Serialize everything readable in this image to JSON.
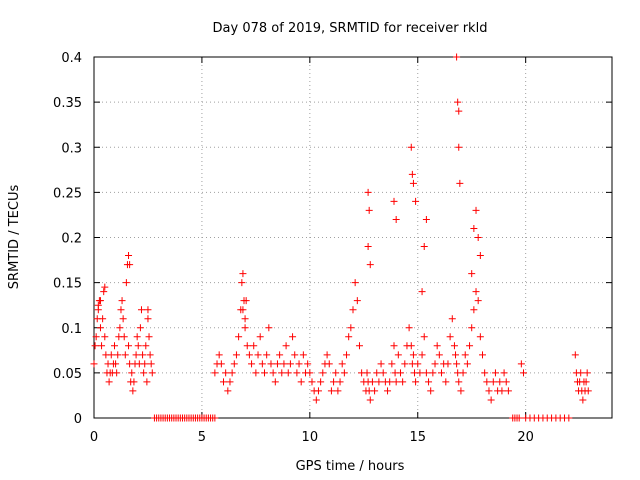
{
  "chart_data": {
    "type": "scatter",
    "title": "Day 078 of 2019, SRMTID for receiver rkld",
    "xlabel": "GPS time / hours",
    "ylabel": "SRMTID / TECUs",
    "xlim": [
      0,
      24
    ],
    "ylim": [
      0,
      0.4
    ],
    "x_ticks": [
      0,
      5,
      10,
      15,
      20
    ],
    "x_tick_labels": [
      "0",
      "5",
      "10",
      "15",
      "20"
    ],
    "y_ticks": [
      0,
      0.05,
      0.1,
      0.15,
      0.2,
      0.25,
      0.3,
      0.35,
      0.4
    ],
    "y_tick_labels": [
      "0",
      "0.05",
      "0.1",
      "0.15",
      "0.2",
      "0.25",
      "0.3",
      "0.35",
      "0.4"
    ],
    "grid": true,
    "marker": "+",
    "series": [
      {
        "name": "SRMTID",
        "color": "#ff0000",
        "x": [
          0.0,
          0.05,
          0.1,
          0.15,
          0.2,
          0.25,
          0.3,
          0.35,
          0.4,
          0.45,
          0.5,
          0.55,
          0.6,
          0.65,
          0.7,
          0.75,
          0.8,
          0.85,
          0.9,
          0.95,
          1.0,
          1.05,
          1.1,
          1.15,
          1.2,
          1.25,
          1.3,
          1.35,
          1.4,
          1.45,
          1.5,
          1.55,
          1.6,
          1.65,
          1.7,
          1.75,
          1.8,
          1.85,
          1.9,
          1.95,
          2.0,
          2.05,
          2.1,
          2.15,
          2.2,
          2.25,
          2.3,
          2.35,
          2.4,
          2.45,
          2.5,
          2.55,
          2.6,
          2.65,
          2.7,
          0.2,
          0.3,
          0.5,
          1.6,
          1.65,
          2.5,
          2.8,
          2.9,
          3.0,
          3.1,
          3.2,
          3.3,
          3.4,
          3.5,
          3.6,
          3.7,
          3.8,
          3.9,
          4.0,
          4.1,
          4.2,
          4.3,
          4.4,
          4.5,
          4.6,
          4.7,
          4.8,
          4.9,
          5.0,
          5.1,
          5.2,
          5.3,
          5.4,
          5.5,
          5.6,
          5.6,
          5.7,
          5.8,
          5.9,
          6.0,
          6.1,
          6.2,
          6.3,
          6.4,
          6.5,
          6.6,
          6.7,
          6.8,
          6.85,
          6.9,
          6.95,
          7.0,
          7.1,
          7.2,
          7.3,
          7.4,
          7.5,
          7.6,
          7.7,
          7.8,
          7.9,
          8.0,
          8.1,
          8.2,
          8.3,
          8.4,
          8.5,
          8.6,
          8.7,
          8.8,
          8.9,
          9.0,
          9.1,
          9.2,
          9.3,
          9.4,
          9.5,
          9.6,
          9.7,
          9.8,
          9.9,
          10.0,
          10.1,
          10.2,
          10.3,
          10.4,
          10.5,
          10.6,
          10.7,
          10.8,
          10.9,
          11.0,
          11.1,
          11.2,
          11.3,
          11.4,
          11.5,
          11.6,
          11.7,
          11.8,
          11.9,
          12.0,
          12.1,
          12.2,
          12.3,
          12.4,
          12.5,
          12.6,
          12.65,
          12.7,
          12.75,
          12.8,
          12.9,
          13.0,
          13.1,
          13.2,
          13.3,
          13.4,
          13.5,
          13.6,
          13.7,
          13.8,
          13.9,
          13.95,
          14.0,
          14.1,
          14.2,
          14.3,
          14.4,
          14.5,
          14.6,
          14.7,
          14.75,
          14.8,
          14.85,
          14.9,
          15.0,
          15.1,
          15.2,
          15.3,
          15.4,
          15.5,
          15.6,
          15.7,
          15.8,
          15.9,
          16.0,
          16.1,
          16.2,
          16.3,
          16.4,
          16.5,
          16.6,
          16.7,
          16.75,
          16.8,
          16.85,
          16.9,
          17.0,
          17.1,
          17.2,
          17.3,
          17.4,
          17.5,
          17.6,
          17.7,
          17.8,
          17.9,
          18.0,
          18.1,
          18.2,
          18.3,
          18.4,
          18.5,
          18.6,
          18.7,
          18.8,
          18.9,
          19.0,
          19.1,
          19.2,
          19.4,
          19.5,
          19.6,
          19.7,
          19.8,
          19.9,
          20.0,
          20.2,
          20.4,
          20.6,
          20.8,
          21.0,
          21.2,
          21.4,
          21.6,
          21.8,
          22.0,
          22.3,
          22.35,
          22.4,
          22.45,
          22.5,
          22.55,
          22.6,
          22.65,
          22.7,
          22.75,
          22.8,
          22.85,
          22.9,
          12.7,
          12.75,
          12.8,
          13.9,
          14.0,
          14.7,
          14.8,
          14.9,
          15.3,
          15.4,
          16.8,
          16.85,
          16.9,
          17.6,
          17.7,
          17.8,
          17.9,
          16.9,
          16.95,
          12.7,
          14.75,
          15.2,
          17.5,
          6.9,
          7.0,
          7.05
        ],
        "y": [
          0.06,
          0.08,
          0.09,
          0.11,
          0.12,
          0.13,
          0.1,
          0.08,
          0.11,
          0.14,
          0.09,
          0.07,
          0.05,
          0.06,
          0.04,
          0.05,
          0.07,
          0.05,
          0.06,
          0.08,
          0.06,
          0.05,
          0.07,
          0.09,
          0.1,
          0.12,
          0.13,
          0.11,
          0.09,
          0.07,
          0.15,
          0.17,
          0.08,
          0.06,
          0.04,
          0.05,
          0.03,
          0.04,
          0.06,
          0.07,
          0.09,
          0.08,
          0.06,
          0.1,
          0.12,
          0.07,
          0.05,
          0.06,
          0.08,
          0.04,
          0.11,
          0.09,
          0.07,
          0.06,
          0.05,
          0.125,
          0.13,
          0.145,
          0.18,
          0.17,
          0.12,
          0.0,
          0.0,
          0.0,
          0.0,
          0.0,
          0.0,
          0.0,
          0.0,
          0.0,
          0.0,
          0.0,
          0.0,
          0.0,
          0.0,
          0.0,
          0.0,
          0.0,
          0.0,
          0.0,
          0.0,
          0.0,
          0.0,
          0.0,
          0.0,
          0.0,
          0.0,
          0.0,
          0.0,
          0.0,
          0.05,
          0.06,
          0.07,
          0.06,
          0.04,
          0.05,
          0.03,
          0.04,
          0.05,
          0.06,
          0.07,
          0.09,
          0.12,
          0.15,
          0.16,
          0.13,
          0.1,
          0.08,
          0.07,
          0.06,
          0.08,
          0.05,
          0.07,
          0.09,
          0.06,
          0.05,
          0.07,
          0.1,
          0.06,
          0.05,
          0.04,
          0.06,
          0.07,
          0.05,
          0.06,
          0.08,
          0.05,
          0.06,
          0.09,
          0.07,
          0.05,
          0.06,
          0.04,
          0.07,
          0.05,
          0.06,
          0.05,
          0.04,
          0.03,
          0.02,
          0.03,
          0.04,
          0.05,
          0.06,
          0.07,
          0.06,
          0.03,
          0.04,
          0.05,
          0.03,
          0.04,
          0.06,
          0.05,
          0.07,
          0.09,
          0.1,
          0.12,
          0.15,
          0.13,
          0.08,
          0.05,
          0.04,
          0.03,
          0.05,
          0.04,
          0.03,
          0.02,
          0.04,
          0.03,
          0.05,
          0.04,
          0.06,
          0.05,
          0.04,
          0.03,
          0.04,
          0.06,
          0.08,
          0.05,
          0.04,
          0.07,
          0.05,
          0.04,
          0.06,
          0.08,
          0.1,
          0.08,
          0.06,
          0.07,
          0.05,
          0.04,
          0.06,
          0.05,
          0.07,
          0.09,
          0.05,
          0.04,
          0.03,
          0.05,
          0.06,
          0.08,
          0.07,
          0.05,
          0.06,
          0.04,
          0.06,
          0.09,
          0.11,
          0.08,
          0.07,
          0.06,
          0.05,
          0.04,
          0.03,
          0.05,
          0.07,
          0.06,
          0.08,
          0.1,
          0.12,
          0.14,
          0.13,
          0.09,
          0.07,
          0.05,
          0.04,
          0.03,
          0.02,
          0.04,
          0.05,
          0.03,
          0.04,
          0.03,
          0.05,
          0.04,
          0.03,
          0.0,
          0.0,
          0.0,
          0.0,
          0.06,
          0.05,
          0.0,
          0.0,
          0.0,
          0.0,
          0.0,
          0.0,
          0.0,
          0.0,
          0.0,
          0.0,
          0.0,
          0.07,
          0.05,
          0.04,
          0.03,
          0.04,
          0.05,
          0.03,
          0.02,
          0.04,
          0.03,
          0.04,
          0.05,
          0.03,
          0.25,
          0.23,
          0.17,
          0.24,
          0.22,
          0.3,
          0.26,
          0.24,
          0.19,
          0.22,
          0.4,
          0.35,
          0.34,
          0.21,
          0.23,
          0.2,
          0.18,
          0.3,
          0.26,
          0.19,
          0.27,
          0.14,
          0.16,
          0.12,
          0.11,
          0.13
        ]
      }
    ]
  }
}
